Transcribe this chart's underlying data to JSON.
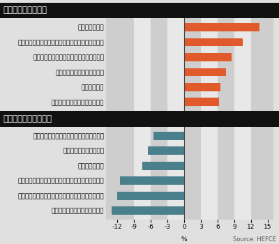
{
  "top_section_title": "予算が増加する大学",
  "bottom_section_title": "予算を削減される大学",
  "top_universities": [
    "ウースター大学",
    "ハーパー・アダムス・ユニバーシティー・カレッジ",
    "カンタベリー・クライスト・チャーチ大学",
    "レイベンズボーン・カレッジ",
    "ロンドン大学",
    "サウサンプトン・ソレント大学"
  ],
  "top_values": [
    13.5,
    10.5,
    8.5,
    7.5,
    6.5,
    6.2
  ],
  "bottom_universities": [
    "ロンドン・スクール・オブ・エコノミクス",
    "ヘイスロップ・カレッジ",
    "レディング大学",
    "インスティチュート・オブ・キャンサー・リサーチ",
    "コートールド・インスティチュート・オブ・アート",
    "ロンドン・ビジネス・スクール"
  ],
  "bottom_values": [
    -5.5,
    -6.5,
    -7.5,
    -11.5,
    -12.0,
    -13.0
  ],
  "top_bar_color": "#E05A2B",
  "bottom_bar_color": "#4A7F8C",
  "xlim": [
    -14,
    16
  ],
  "xticks": [
    -12,
    -9,
    -6,
    -3,
    0,
    3,
    6,
    9,
    12,
    15
  ],
  "xlabel": "%",
  "source_text": "Source: HEFCE",
  "header_bg": "#111111",
  "header_fg": "#ffffff",
  "plot_bg": "#e0e0e0",
  "stripe_light": "#e8e8e8",
  "stripe_dark": "#cecece",
  "bar_height": 0.55,
  "title_fontsize": 8.5,
  "label_fontsize": 6.5,
  "tick_fontsize": 6.5,
  "source_fontsize": 6.0
}
